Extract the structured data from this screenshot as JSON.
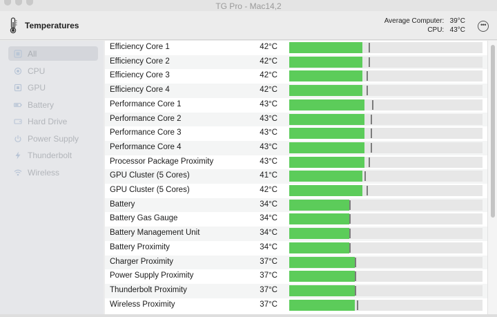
{
  "window": {
    "title": "TG Pro - Mac14,2"
  },
  "header": {
    "title": "Temperatures",
    "thermometer_icon": "thermometer-icon",
    "average_label": "Average Computer:",
    "average_value": "39°C",
    "cpu_label": "CPU:",
    "cpu_value": "43°C",
    "more_icon": "ellipsis-circle-icon"
  },
  "sidebar": {
    "selected": "All",
    "items": [
      {
        "label": "All",
        "icon": "all-icon"
      },
      {
        "label": "CPU",
        "icon": "cpu-icon"
      },
      {
        "label": "GPU",
        "icon": "gpu-icon"
      },
      {
        "label": "Battery",
        "icon": "battery-icon"
      },
      {
        "label": "Hard Drive",
        "icon": "hard-drive-icon"
      },
      {
        "label": "Power Supply",
        "icon": "power-icon"
      },
      {
        "label": "Thunderbolt",
        "icon": "thunderbolt-icon"
      },
      {
        "label": "Wireless",
        "icon": "wifi-icon"
      }
    ]
  },
  "sensors": [
    {
      "name": "Efficiency Core 1",
      "temp": "42°C",
      "level": 0.38,
      "marker": 0.41
    },
    {
      "name": "Efficiency Core 2",
      "temp": "42°C",
      "level": 0.38,
      "marker": 0.41
    },
    {
      "name": "Efficiency Core 3",
      "temp": "42°C",
      "level": 0.38,
      "marker": 0.4
    },
    {
      "name": "Efficiency Core 4",
      "temp": "42°C",
      "level": 0.38,
      "marker": 0.4
    },
    {
      "name": "Performance Core 1",
      "temp": "43°C",
      "level": 0.39,
      "marker": 0.43
    },
    {
      "name": "Performance Core 2",
      "temp": "43°C",
      "level": 0.39,
      "marker": 0.42
    },
    {
      "name": "Performance Core 3",
      "temp": "43°C",
      "level": 0.39,
      "marker": 0.42
    },
    {
      "name": "Performance Core 4",
      "temp": "43°C",
      "level": 0.39,
      "marker": 0.42
    },
    {
      "name": "Processor Package Proximity",
      "temp": "43°C",
      "level": 0.39,
      "marker": 0.41
    },
    {
      "name": "GPU Cluster (5 Cores)",
      "temp": "41°C",
      "level": 0.38,
      "marker": 0.39
    },
    {
      "name": "GPU Cluster (5 Cores)",
      "temp": "42°C",
      "level": 0.38,
      "marker": 0.4
    },
    {
      "name": "Battery",
      "temp": "34°C",
      "level": 0.31,
      "marker": 0.31
    },
    {
      "name": "Battery Gas Gauge",
      "temp": "34°C",
      "level": 0.31,
      "marker": 0.31
    },
    {
      "name": "Battery Management Unit",
      "temp": "34°C",
      "level": 0.31,
      "marker": 0.31
    },
    {
      "name": "Battery Proximity",
      "temp": "34°C",
      "level": 0.31,
      "marker": 0.31
    },
    {
      "name": "Charger Proximity",
      "temp": "37°C",
      "level": 0.34,
      "marker": 0.34
    },
    {
      "name": "Power Supply Proximity",
      "temp": "37°C",
      "level": 0.34,
      "marker": 0.34
    },
    {
      "name": "Thunderbolt Proximity",
      "temp": "37°C",
      "level": 0.34,
      "marker": 0.34
    },
    {
      "name": "Wireless Proximity",
      "temp": "37°C",
      "level": 0.34,
      "marker": 0.35
    }
  ],
  "colors": {
    "bar_fill": "#5ccc5a",
    "bar_track": "#e7e7e7",
    "marker": "#7b7b7b"
  }
}
